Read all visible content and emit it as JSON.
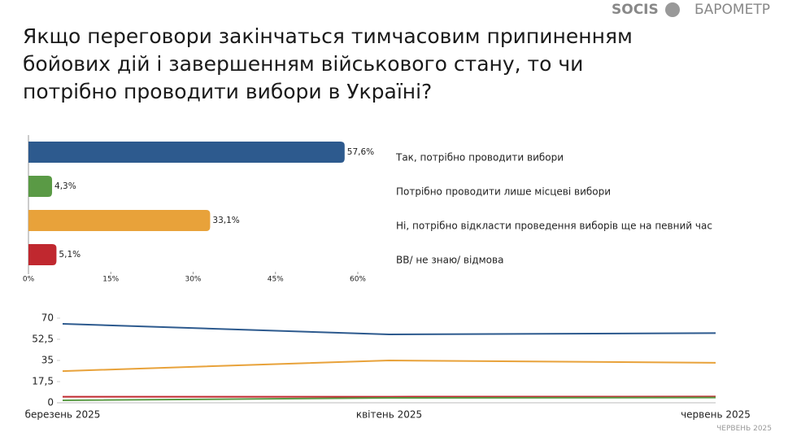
{
  "header": {
    "logo": "SOCIS",
    "brand": "БАРОМЕТР"
  },
  "chart_data": [
    {
      "type": "barh",
      "title": "Якщо переговори закінчаться тимчасовим припиненням бойових дій і завершенням військового стану, то чи потрібно проводити вибори в Україні?",
      "categories": [
        "Так, потрібно проводити вибори",
        "Потрібно проводити лише місцеві вибори",
        "Ні, потрібно відкласти проведення виборів ще на певний час",
        "ВВ/ не знаю/ відмова"
      ],
      "values": [
        57.6,
        4.3,
        33.1,
        5.1
      ],
      "value_labels": [
        "57,6%",
        "4,3%",
        "33,1%",
        "5,1%"
      ],
      "colors": [
        "#2d5a8e",
        "#5a9a45",
        "#e8a23a",
        "#c0282f"
      ],
      "xlim": [
        0,
        60
      ],
      "xticks": [
        {
          "value": 0,
          "label": "0%"
        },
        {
          "value": 15,
          "label": "15%"
        },
        {
          "value": 30,
          "label": "30%"
        },
        {
          "value": 45,
          "label": "45%"
        },
        {
          "value": 60,
          "label": "60%"
        }
      ]
    },
    {
      "type": "line",
      "categories": [
        "березень 2025",
        "квітень 2025",
        "червень 2025"
      ],
      "series": [
        {
          "color": "#2d5a8e",
          "values": [
            65.3,
            56.5,
            57.6
          ]
        },
        {
          "color": "#e8a23a",
          "values": [
            26.2,
            35,
            33.1
          ]
        },
        {
          "color": "#c0282f",
          "values": [
            5,
            5,
            5.1
          ]
        },
        {
          "color": "#5a9a45",
          "values": [
            2,
            4,
            4.3
          ]
        }
      ],
      "ylim": [
        0,
        70
      ],
      "yticks": [
        0,
        {
          "value": 17.5,
          "label": "17,5"
        },
        35,
        {
          "value": 52.5,
          "label": "52,5"
        },
        70
      ]
    }
  ],
  "footer": "ЧЕРВЕНЬ 2025"
}
